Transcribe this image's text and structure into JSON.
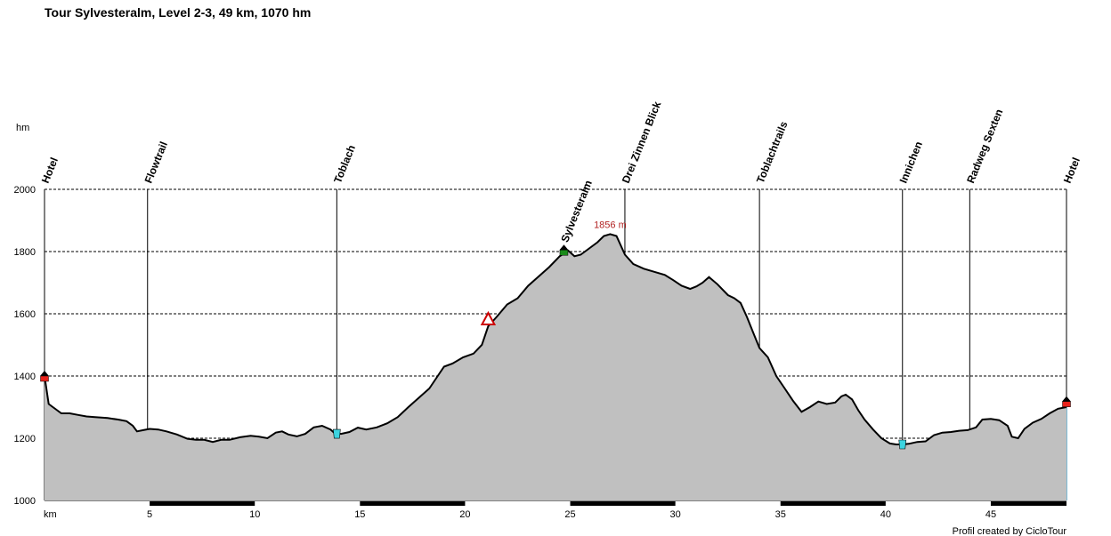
{
  "chart_data": {
    "type": "area",
    "title": "Tour Sylvesteralm, Level 2-3, 49 km, 1070 hm",
    "xlabel": "km",
    "ylabel": "hm",
    "xlim": [
      0,
      48.6
    ],
    "ylim": [
      1000,
      2000
    ],
    "xticks": [
      5,
      10,
      15,
      20,
      25,
      30,
      35,
      40,
      45
    ],
    "yticks": [
      1000,
      1200,
      1400,
      1600,
      1800,
      2000
    ],
    "grid": true,
    "fill_color": "#c0c0c0",
    "line_color": "#000000",
    "peak_label": "1856 m",
    "credit": "Profil created by CicloTour",
    "series": [
      {
        "x": [
          0,
          0.2,
          0.4,
          0.8,
          1.2,
          1.6,
          2.0,
          2.4,
          3.0,
          3.5,
          3.9,
          4.2,
          4.4,
          4.7,
          5.0,
          5.4,
          5.8,
          6.3,
          6.8,
          7.2,
          7.6,
          8.0,
          8.4,
          8.8,
          9.3,
          9.8,
          10.2,
          10.6,
          11.0,
          11.3,
          11.6,
          12.0,
          12.4,
          12.8,
          13.2,
          13.6,
          13.8,
          14.1,
          14.5,
          14.9,
          15.3,
          15.8,
          16.3,
          16.8,
          17.3,
          17.8,
          18.3,
          18.7,
          19.0,
          19.4,
          19.9,
          20.4,
          20.8,
          21.1,
          21.5,
          22.0,
          22.5,
          23.0,
          23.5,
          24.0,
          24.5,
          24.9,
          25.2,
          25.5,
          25.9,
          26.3,
          26.6,
          26.9,
          27.2,
          27.6,
          28.0,
          28.5,
          29.0,
          29.5,
          29.9,
          30.3,
          30.7,
          31.0,
          31.3,
          31.6,
          32.0,
          32.5,
          32.8,
          33.1,
          33.4,
          33.7,
          34.0,
          34.2,
          34.4,
          34.8,
          35.2,
          35.6,
          36.0,
          36.4,
          36.8,
          37.2,
          37.6,
          37.9,
          38.1,
          38.4,
          38.7,
          39.0,
          39.4,
          39.8,
          40.2,
          40.5,
          40.8,
          41.1,
          41.5,
          41.9,
          42.3,
          42.7,
          43.1,
          43.5,
          43.9,
          44.3,
          44.6,
          45.0,
          45.4,
          45.8,
          46.0,
          46.3,
          46.6,
          47.0,
          47.4,
          47.8,
          48.2,
          48.6
        ],
        "y": [
          1400,
          1310,
          1300,
          1280,
          1280,
          1275,
          1270,
          1268,
          1265,
          1260,
          1255,
          1240,
          1222,
          1226,
          1230,
          1228,
          1222,
          1212,
          1198,
          1195,
          1195,
          1188,
          1195,
          1195,
          1203,
          1208,
          1205,
          1200,
          1218,
          1222,
          1212,
          1206,
          1214,
          1235,
          1240,
          1228,
          1216,
          1214,
          1220,
          1234,
          1228,
          1235,
          1248,
          1268,
          1300,
          1330,
          1360,
          1400,
          1430,
          1440,
          1460,
          1472,
          1500,
          1560,
          1590,
          1630,
          1650,
          1690,
          1720,
          1750,
          1785,
          1803,
          1785,
          1790,
          1810,
          1830,
          1850,
          1856,
          1850,
          1790,
          1760,
          1745,
          1735,
          1725,
          1708,
          1690,
          1680,
          1688,
          1700,
          1718,
          1695,
          1660,
          1650,
          1635,
          1590,
          1540,
          1490,
          1475,
          1460,
          1400,
          1360,
          1320,
          1285,
          1300,
          1318,
          1310,
          1315,
          1335,
          1340,
          1325,
          1290,
          1260,
          1228,
          1200,
          1183,
          1180,
          1180,
          1182,
          1188,
          1190,
          1210,
          1218,
          1220,
          1224,
          1226,
          1235,
          1260,
          1262,
          1258,
          1240,
          1205,
          1200,
          1230,
          1250,
          1262,
          1280,
          1295,
          1300
        ]
      }
    ],
    "waypoints": [
      {
        "km": 0.0,
        "label": "Hotel",
        "line_top": 2000,
        "marker": "house",
        "marker_alt": 1400
      },
      {
        "km": 4.9,
        "label": "Flowtrail",
        "line_top": 2000,
        "marker": "none",
        "marker_alt": null
      },
      {
        "km": 13.9,
        "label": "Toblach",
        "line_top": 2000,
        "marker": "drink",
        "marker_alt": 1214
      },
      {
        "km": 24.7,
        "label": "Sylvesteralm",
        "line_top": 1810,
        "marker": "hut",
        "marker_alt": 1805
      },
      {
        "km": 27.6,
        "label": "Drei Zinnen Blick",
        "line_top": 2000,
        "marker": "none",
        "marker_alt": null
      },
      {
        "km": 34.0,
        "label": "Toblachtrails",
        "line_top": 2000,
        "marker": "none",
        "marker_alt": null
      },
      {
        "km": 40.8,
        "label": "Innichen",
        "line_top": 2000,
        "marker": "drink",
        "marker_alt": 1180
      },
      {
        "km": 44.0,
        "label": "Radweg Sexten",
        "line_top": 2000,
        "marker": "none",
        "marker_alt": null
      },
      {
        "km": 48.6,
        "label": "Hotel",
        "line_top": 2000,
        "marker": "house",
        "marker_alt": 1318
      }
    ],
    "extra_markers": [
      {
        "km": 21.1,
        "alt": 1580,
        "marker": "warning"
      }
    ]
  }
}
